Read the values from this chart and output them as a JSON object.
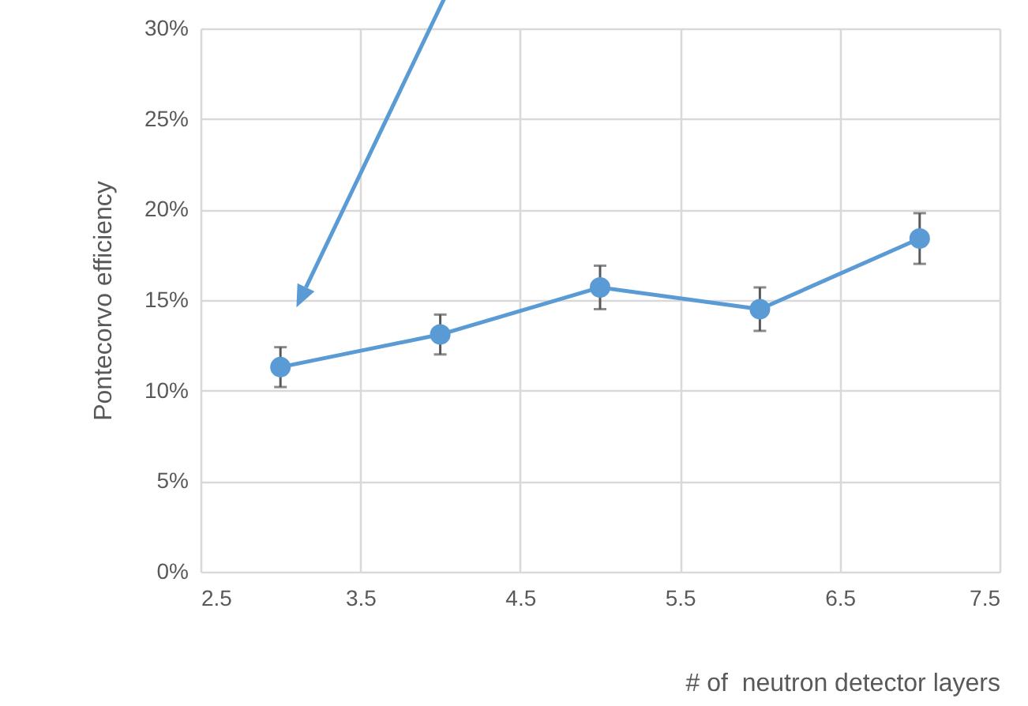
{
  "chart_data": {
    "type": "line",
    "xlabel": "# of  neutron detector layers",
    "ylabel": "Pontecorvo efficiency",
    "x": [
      3,
      4,
      5,
      6,
      7
    ],
    "series": [
      {
        "color": "#5b9bd5",
        "values": [
          11.3,
          13.1,
          15.7,
          14.5,
          18.4
        ],
        "errors": [
          1.1,
          1.1,
          1.2,
          1.2,
          1.4
        ]
      }
    ],
    "xlim": [
      2.5,
      7.5
    ],
    "xticks": [
      2.5,
      3.5,
      4.5,
      5.5,
      6.5,
      7.5
    ],
    "ylim": [
      0,
      30
    ],
    "yticks": [
      {
        "value": 0,
        "label": "0%"
      },
      {
        "value": 5,
        "label": "5%"
      },
      {
        "value": 10,
        "label": "10%"
      },
      {
        "value": 15,
        "label": "15%"
      },
      {
        "value": 20,
        "label": "20%"
      },
      {
        "value": 25,
        "label": "25%"
      },
      {
        "value": 30,
        "label": "30%"
      }
    ],
    "grid": true,
    "marker": "circle",
    "line_style": "solid"
  }
}
